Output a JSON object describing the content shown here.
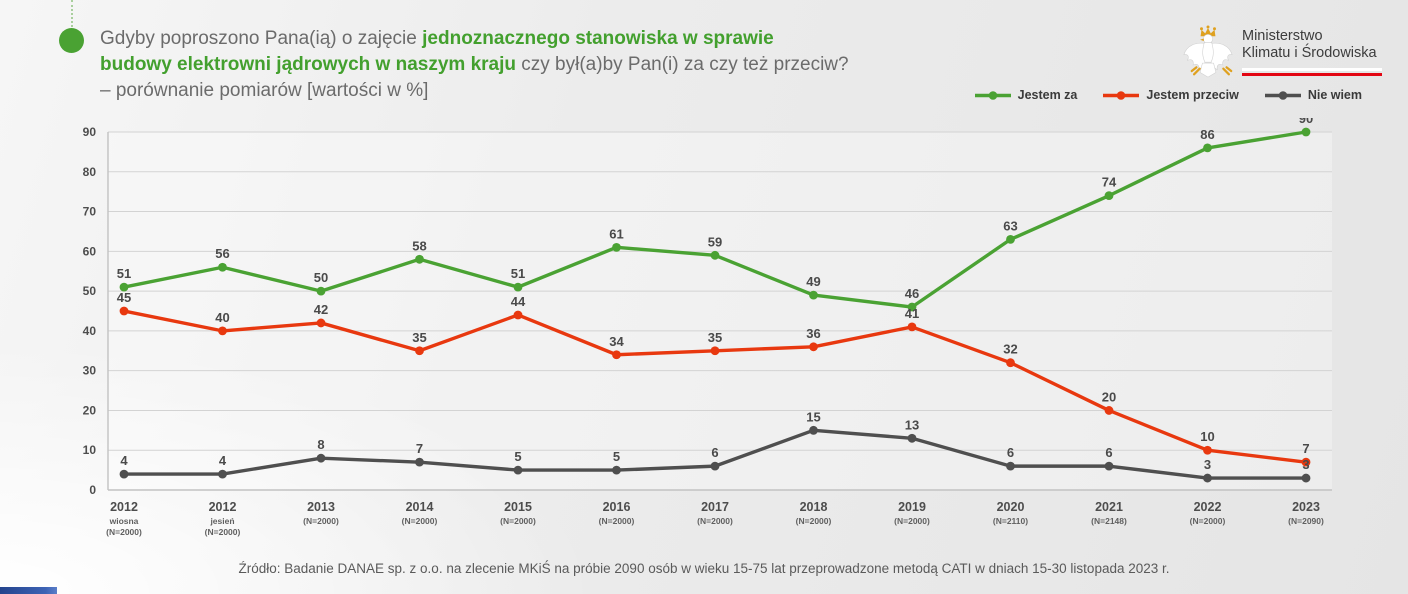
{
  "slide": {
    "title": {
      "line1_gray": "Gdyby poproszono Pana(ią) o zajęcie ",
      "line1_green": "jednoznacznego stanowiska w sprawie",
      "line2_green": "budowy elektrowni jądrowych w naszym kraju",
      "line2_gray": " czy był(a)by Pan(i) za czy też przeciw?",
      "line3_gray": "– porównanie pomiarów [wartości w %]"
    },
    "logo": {
      "line1": "Ministerstwo",
      "line2": "Klimatu i Środowiska"
    },
    "source": "Źródło: Badanie DANAE sp. z o.o. na zlecenie MKiŚ na próbie 2090 osób w wieku 15-75 lat przeprowadzone metodą CATI w dniach 15-30 listopada 2023 r."
  },
  "colors": {
    "green": "#4aa233",
    "red": "#e8380f",
    "dark_gray": "#4f4f4f",
    "flag_red": "#e30613",
    "accent_bar_blue": "#2f55a4"
  },
  "chart_data": {
    "type": "line",
    "title": "Gdyby poproszono Pana(ią) o zajęcie jednoznacznego stanowiska w sprawie budowy elektrowni jądrowych w naszym kraju czy był(a)by Pan(i) za czy też przeciw? – porównanie pomiarów [wartości w %]",
    "x_labels": [
      {
        "year": "2012",
        "sub1": "wiosna",
        "sub2": "(N=2000)"
      },
      {
        "year": "2012",
        "sub1": "jesień",
        "sub2": "(N=2000)"
      },
      {
        "year": "2013",
        "sub1": "(N=2000)",
        "sub2": ""
      },
      {
        "year": "2014",
        "sub1": "(N=2000)",
        "sub2": ""
      },
      {
        "year": "2015",
        "sub1": "(N=2000)",
        "sub2": ""
      },
      {
        "year": "2016",
        "sub1": "(N=2000)",
        "sub2": ""
      },
      {
        "year": "2017",
        "sub1": "(N=2000)",
        "sub2": ""
      },
      {
        "year": "2018",
        "sub1": "(N=2000)",
        "sub2": ""
      },
      {
        "year": "2019",
        "sub1": "(N=2000)",
        "sub2": ""
      },
      {
        "year": "2020",
        "sub1": "(N=2110)",
        "sub2": ""
      },
      {
        "year": "2021",
        "sub1": "(N=2148)",
        "sub2": ""
      },
      {
        "year": "2022",
        "sub1": "(N=2000)",
        "sub2": ""
      },
      {
        "year": "2023",
        "sub1": "(N=2090)",
        "sub2": ""
      }
    ],
    "series": [
      {
        "name": "Jestem za",
        "color": "#4aa233",
        "values": [
          51,
          56,
          50,
          58,
          51,
          61,
          59,
          49,
          46,
          63,
          74,
          86,
          90
        ]
      },
      {
        "name": "Jestem przeciw",
        "color": "#e8380f",
        "values": [
          45,
          40,
          42,
          35,
          44,
          34,
          35,
          36,
          41,
          32,
          20,
          10,
          7
        ]
      },
      {
        "name": "Nie wiem",
        "color": "#4f4f4f",
        "values": [
          4,
          4,
          8,
          7,
          5,
          5,
          6,
          15,
          13,
          6,
          6,
          3,
          3
        ]
      }
    ],
    "ylim": [
      0,
      90
    ],
    "ytick_step": 10,
    "grid": true,
    "legend_position": "top-right"
  }
}
